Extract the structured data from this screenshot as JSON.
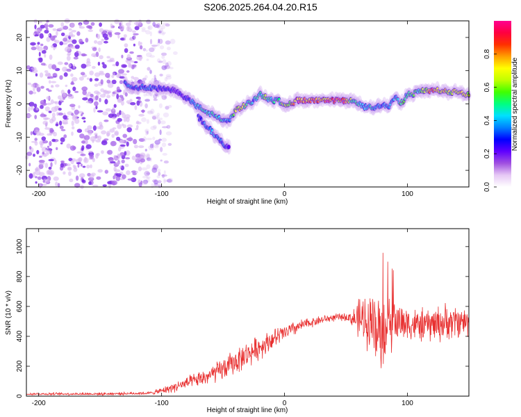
{
  "title": "S206.2025.264.04.20.R15",
  "chart_data": [
    {
      "type": "heatmap",
      "description_label": "spectrogram",
      "xlabel": "Height of straight line (km)",
      "ylabel": "Frequency (Hz)",
      "xlim": [
        -210,
        150
      ],
      "ylim": [
        -25,
        25
      ],
      "x_ticks": [
        -200,
        -100,
        0,
        100
      ],
      "y_ticks": [
        20,
        10,
        0,
        -10,
        -20
      ],
      "colorbar": {
        "label": "Normalized spectral amplitude",
        "range": [
          0,
          1
        ],
        "ticks": [
          0.0,
          0.2,
          0.4,
          0.6,
          0.8
        ],
        "colors": [
          "#ffffff",
          "#e6c8f5",
          "#a050e0",
          "#6000ff",
          "#0000ff",
          "#0080ff",
          "#00e0ff",
          "#00ff80",
          "#40ff00",
          "#c0ff00",
          "#ffff00",
          "#ffa000",
          "#ff3000",
          "#ff0040",
          "#ff0090"
        ]
      },
      "ridge": {
        "x": [
          -130,
          -120,
          -110,
          -100,
          -90,
          -80,
          -70,
          -60,
          -50,
          -45,
          -40,
          -35,
          -30,
          -25,
          -20,
          -15,
          -10,
          -5,
          0,
          5,
          10,
          20,
          30,
          40,
          50,
          55,
          60,
          65,
          70,
          75,
          80,
          85,
          90,
          95,
          100,
          105,
          110,
          115,
          120,
          125,
          130,
          135,
          140,
          145,
          150
        ],
        "freq_hz": [
          6,
          5,
          5,
          4.5,
          4,
          2,
          -1,
          -3,
          -5,
          -5,
          -2,
          -1,
          0,
          1,
          3,
          2,
          1,
          1,
          0,
          0,
          1,
          1,
          1,
          1,
          1,
          1,
          0,
          -1,
          -1,
          -1,
          0,
          -1,
          2,
          0,
          3,
          3,
          4,
          4,
          4,
          4,
          4,
          3,
          4,
          3,
          3
        ],
        "amplitude": [
          0.4,
          0.3,
          0.35,
          0.3,
          0.25,
          0.3,
          0.45,
          0.5,
          0.45,
          0.35,
          0.65,
          0.75,
          0.55,
          0.4,
          0.55,
          0.6,
          0.45,
          0.5,
          0.7,
          0.75,
          0.9,
          0.92,
          0.9,
          0.88,
          0.85,
          0.6,
          0.5,
          0.4,
          0.45,
          0.4,
          0.4,
          0.45,
          0.4,
          0.55,
          0.5,
          0.55,
          0.5,
          0.75,
          0.85,
          0.7,
          0.75,
          0.7,
          0.8,
          0.75,
          0.75
        ]
      },
      "branch": {
        "x": [
          -70,
          -65,
          -60,
          -55,
          -50,
          -45
        ],
        "freq_hz": [
          -4,
          -6,
          -8,
          -10,
          -12,
          -13
        ],
        "amplitude": [
          0.3,
          0.35,
          0.4,
          0.4,
          0.35,
          0.25
        ]
      },
      "noise_region_x": [
        -210,
        -100
      ]
    },
    {
      "type": "line",
      "xlabel": "Height of straight line (km)",
      "ylabel": "SNR (10 * v/v)",
      "xlim": [
        -210,
        150
      ],
      "ylim": [
        0,
        1120
      ],
      "x_ticks": [
        -200,
        -100,
        0,
        100
      ],
      "y_ticks": [
        0,
        200,
        400,
        600,
        800,
        1000
      ],
      "series": [
        {
          "name": "SNR",
          "color": "#e83030",
          "envelope_x": [
            -210,
            -150,
            -110,
            -100,
            -90,
            -80,
            -70,
            -60,
            -50,
            -40,
            -30,
            -20,
            -10,
            0,
            10,
            20,
            30,
            40,
            50,
            55,
            60,
            65,
            70,
            75,
            80,
            85,
            90,
            100,
            110,
            120,
            130,
            140,
            150
          ],
          "envelope_mean": [
            15,
            15,
            20,
            35,
            60,
            85,
            110,
            140,
            180,
            230,
            280,
            330,
            380,
            420,
            460,
            490,
            510,
            525,
            530,
            520,
            510,
            510,
            500,
            470,
            420,
            470,
            500,
            490,
            470,
            480,
            490,
            500,
            500
          ],
          "envelope_spread": [
            10,
            10,
            12,
            25,
            40,
            50,
            60,
            75,
            90,
            100,
            100,
            95,
            80,
            70,
            55,
            40,
            35,
            30,
            30,
            60,
            160,
            200,
            230,
            250,
            300,
            230,
            180,
            140,
            130,
            140,
            150,
            130,
            120
          ]
        }
      ]
    }
  ]
}
